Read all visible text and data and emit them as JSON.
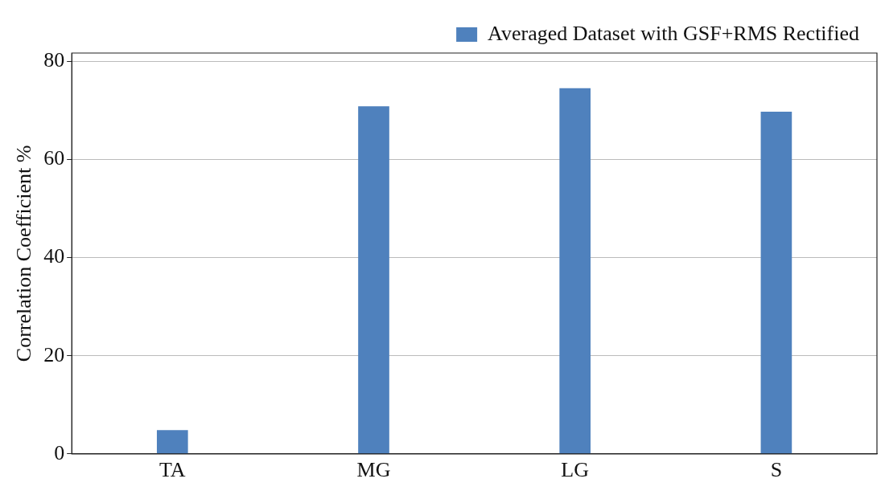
{
  "chart_data": {
    "type": "bar",
    "ylabel": "Correlation Coefficient %",
    "categories": [
      "TA",
      "MG",
      "LG",
      "S"
    ],
    "series": [
      {
        "name": "Averaged Dataset with GSF+RMS Rectified",
        "color": "#4f81bd",
        "values": [
          4.8,
          70.8,
          74.5,
          69.7
        ]
      }
    ],
    "ylim": [
      0,
      81.7
    ],
    "yticks": [
      0,
      20,
      40,
      60,
      80
    ],
    "grid": "y",
    "legend": "top right"
  }
}
